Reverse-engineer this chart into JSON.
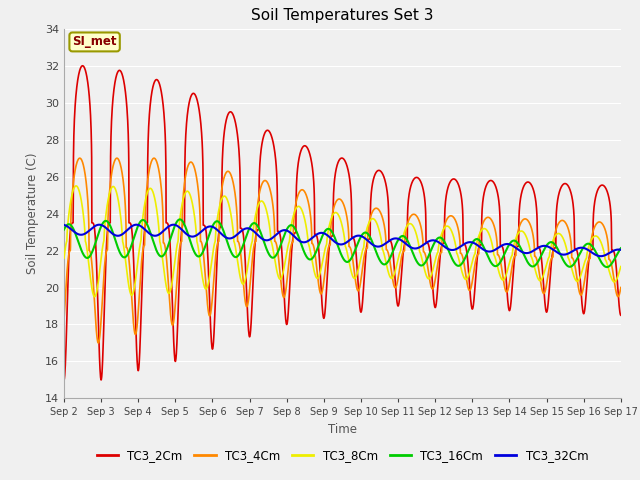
{
  "title": "Soil Temperatures Set 3",
  "xlabel": "Time",
  "ylabel": "Soil Temperature (C)",
  "ylim": [
    14,
    34
  ],
  "xlim": [
    0,
    15
  ],
  "yticks": [
    14,
    16,
    18,
    20,
    22,
    24,
    26,
    28,
    30,
    32,
    34
  ],
  "xtick_labels": [
    "Sep 2",
    "Sep 3",
    "Sep 4",
    "Sep 5",
    "Sep 6",
    "Sep 7",
    "Sep 8",
    "Sep 9",
    "Sep 10",
    "Sep 11",
    "Sep 12",
    "Sep 13",
    "Sep 14",
    "Sep 15",
    "Sep 16",
    "Sep 17"
  ],
  "fig_bg_color": "#f0f0f0",
  "plot_bg_color": "#f0f0f0",
  "series_colors": {
    "TC3_2Cm": "#dd0000",
    "TC3_4Cm": "#ff8800",
    "TC3_8Cm": "#eeee00",
    "TC3_16Cm": "#00cc00",
    "TC3_32Cm": "#0000dd"
  },
  "annotation_text": "SI_met",
  "annotation_color": "#880000",
  "annotation_bg": "#ffffcc",
  "annotation_border": "#999900",
  "grid_color": "#ffffff",
  "linewidth": 1.2
}
